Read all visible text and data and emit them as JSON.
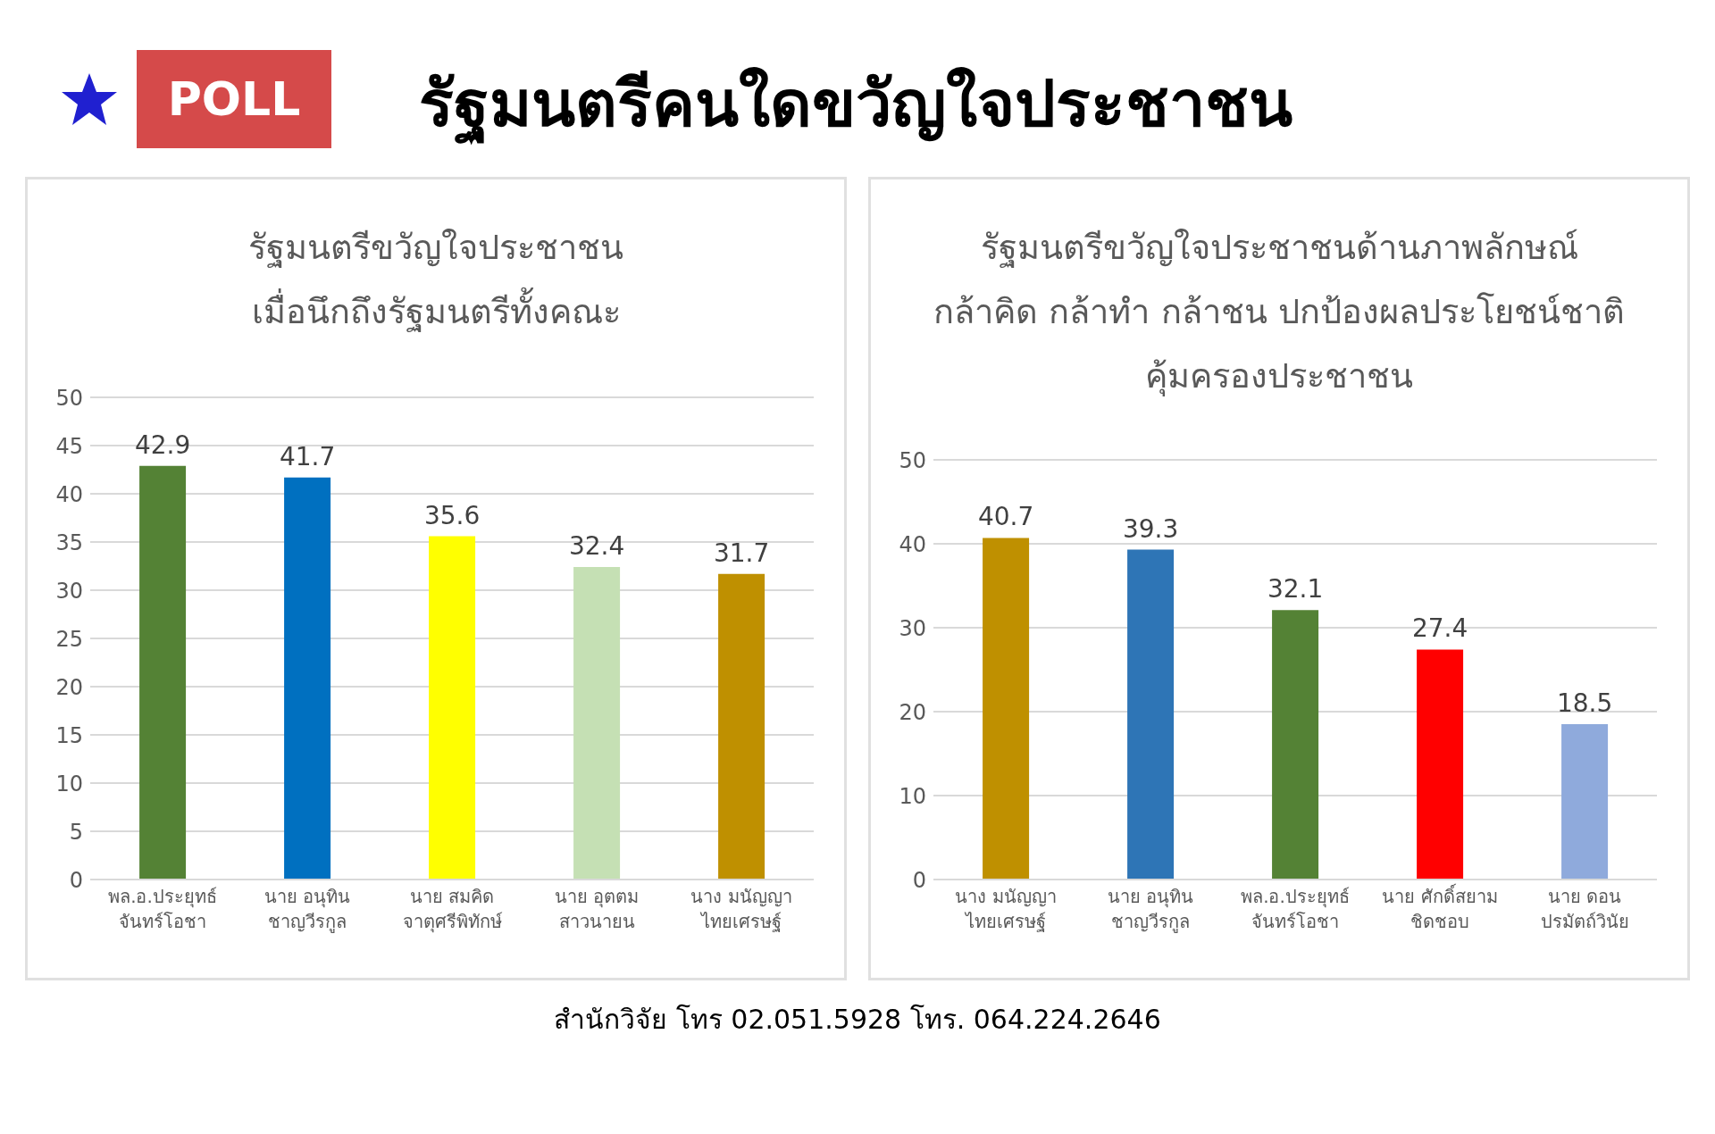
{
  "chart_data": [
    {
      "type": "other",
      "title": "รัฐมนตรีคนใดขวัญใจประชาชน",
      "annotations": [
        "POLL",
        "สำนักวิจัย โทร 02.051.5928  โทร. 064.224.2646"
      ]
    },
    {
      "type": "bar",
      "title": "รัฐมนตรีขวัญใจประชาชน\nเมื่อนึกถึงรัฐมนตรีทั้งคณะ",
      "categories": [
        "พล.อ.ประยุทธ์ จันทร์โอชา",
        "นาย อนุทิน ชาญวีรกูล",
        "นาย สมคิด จาตุศรีพิทักษ์",
        "นาย อุตตม สาวนายน",
        "นาง มนัญญา ไทยเศรษฐ์"
      ],
      "values": [
        42.9,
        41.7,
        35.6,
        32.4,
        31.7
      ],
      "colors": [
        "#548235",
        "#0070c0",
        "#ffff00",
        "#c5e0b4",
        "#bf9000"
      ],
      "ylim": [
        0,
        50
      ],
      "yticks": [
        0,
        5,
        10,
        15,
        20,
        25,
        30,
        35,
        40,
        45,
        50
      ],
      "grid": "y",
      "data_labels": true
    },
    {
      "type": "bar",
      "title": "รัฐมนตรีขวัญใจประชาชนด้านภาพลักษณ์\nกล้าคิด กล้าทำ กล้าชน ปกป้องผลประโยชน์ชาติ\nคุ้มครองประชาชน",
      "categories": [
        "นาง มนัญญา ไทยเศรษฐ์",
        "นาย อนุทิน ชาญวีรกูล",
        "พล.อ.ประยุทธ์ จันทร์โอชา",
        "นาย ศักดิ์สยาม ชิดชอบ",
        "นาย ดอน ปรมัตถ์วินัย"
      ],
      "values": [
        40.7,
        39.3,
        32.1,
        27.4,
        18.5
      ],
      "colors": [
        "#bf9000",
        "#2e75b6",
        "#548235",
        "#ff0000",
        "#8faadc"
      ],
      "ylim": [
        0,
        50
      ],
      "yticks": [
        0,
        10,
        20,
        30,
        40,
        50
      ],
      "grid": "y",
      "data_labels": true
    }
  ]
}
